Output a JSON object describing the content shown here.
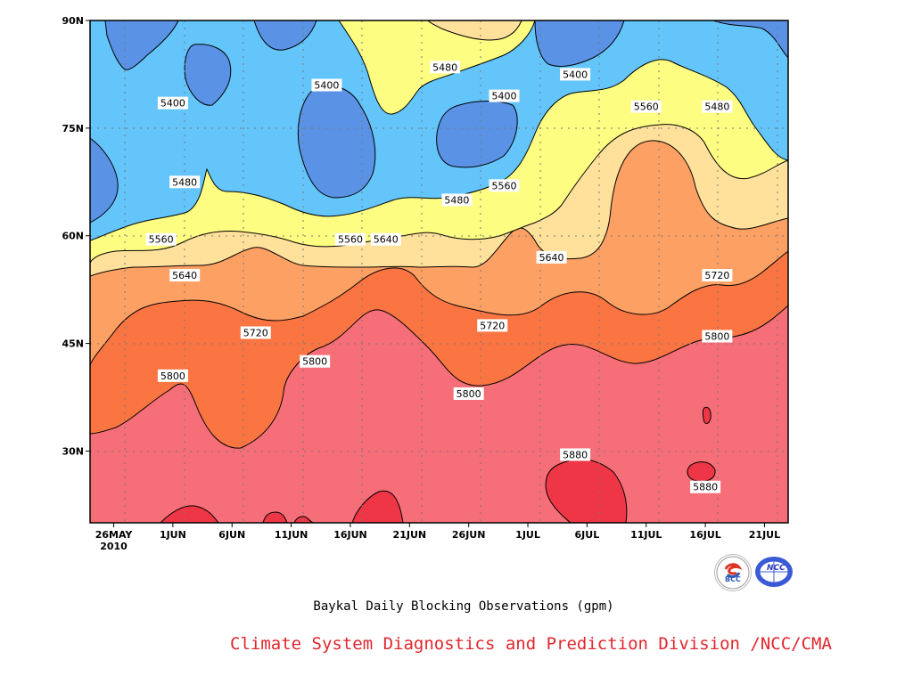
{
  "chart_data": {
    "type": "contour",
    "title": "Baykal Daily Blocking Observations (gpm)",
    "x_ticks": [
      "26MAY\n2010",
      "1JUN",
      "6JUN",
      "11JUN",
      "16JUN",
      "21JUN",
      "26JUN",
      "1JUL",
      "6JUL",
      "11JUL",
      "16JUL",
      "21JUL"
    ],
    "x_range": [
      "2010-05-24",
      "2010-07-22"
    ],
    "y_ticks": [
      "30N",
      "45N",
      "60N",
      "75N",
      "90N"
    ],
    "y_range": [
      20,
      90
    ],
    "levels": [
      5400,
      5480,
      5560,
      5640,
      5720,
      5800,
      5880
    ],
    "fill_colors": {
      "below_5400": "#5a93e6",
      "5400_5480": "#64c5fb",
      "5480_5560": "#fdfd82",
      "5560_5640": "#ffe19b",
      "5640_5720": "#fda064",
      "5720_5800": "#fb7543",
      "5800_5880": "#f56e78",
      "above_5880": "#ef3646"
    },
    "contour_labels": [
      {
        "value": "5400",
        "date": "2010-05-31",
        "lat": 78.5
      },
      {
        "value": "5400",
        "date": "2010-06-13",
        "lat": 81
      },
      {
        "value": "5400",
        "date": "2010-06-28",
        "lat": 79.5
      },
      {
        "value": "5400",
        "date": "2010-07-04",
        "lat": 82.5
      },
      {
        "value": "5480",
        "date": "2010-06-01",
        "lat": 67.5
      },
      {
        "value": "5480",
        "date": "2010-06-23",
        "lat": 83.5
      },
      {
        "value": "5480",
        "date": "2010-06-24",
        "lat": 65
      },
      {
        "value": "5480",
        "date": "2010-07-16",
        "lat": 78
      },
      {
        "value": "5560",
        "date": "2010-05-30",
        "lat": 59.5
      },
      {
        "value": "5560",
        "date": "2010-06-15",
        "lat": 59.5
      },
      {
        "value": "5560",
        "date": "2010-06-28",
        "lat": 67
      },
      {
        "value": "5560",
        "date": "2010-07-10",
        "lat": 78
      },
      {
        "value": "5640",
        "date": "2010-06-01",
        "lat": 54.5
      },
      {
        "value": "5640",
        "date": "2010-06-18",
        "lat": 59.5
      },
      {
        "value": "5640",
        "date": "2010-07-02",
        "lat": 57
      },
      {
        "value": "5720",
        "date": "2010-06-07",
        "lat": 46.5
      },
      {
        "value": "5720",
        "date": "2010-06-27",
        "lat": 47.5
      },
      {
        "value": "5720",
        "date": "2010-07-16",
        "lat": 54.5
      },
      {
        "value": "5800",
        "date": "2010-05-31",
        "lat": 40.5
      },
      {
        "value": "5800",
        "date": "2010-06-12",
        "lat": 42.5
      },
      {
        "value": "5800",
        "date": "2010-06-25",
        "lat": 38
      },
      {
        "value": "5800",
        "date": "2010-07-16",
        "lat": 46
      },
      {
        "value": "5880",
        "date": "2010-07-04",
        "lat": 29.5
      },
      {
        "value": "5880",
        "date": "2010-07-15",
        "lat": 25
      }
    ]
  },
  "caption": "Baykal Daily Blocking Observations (gpm)",
  "credit": "Climate System Diagnostics and Prediction Division /NCC/CMA",
  "logos": {
    "bcc_text": "BCC",
    "ncc_text": "NCC"
  }
}
